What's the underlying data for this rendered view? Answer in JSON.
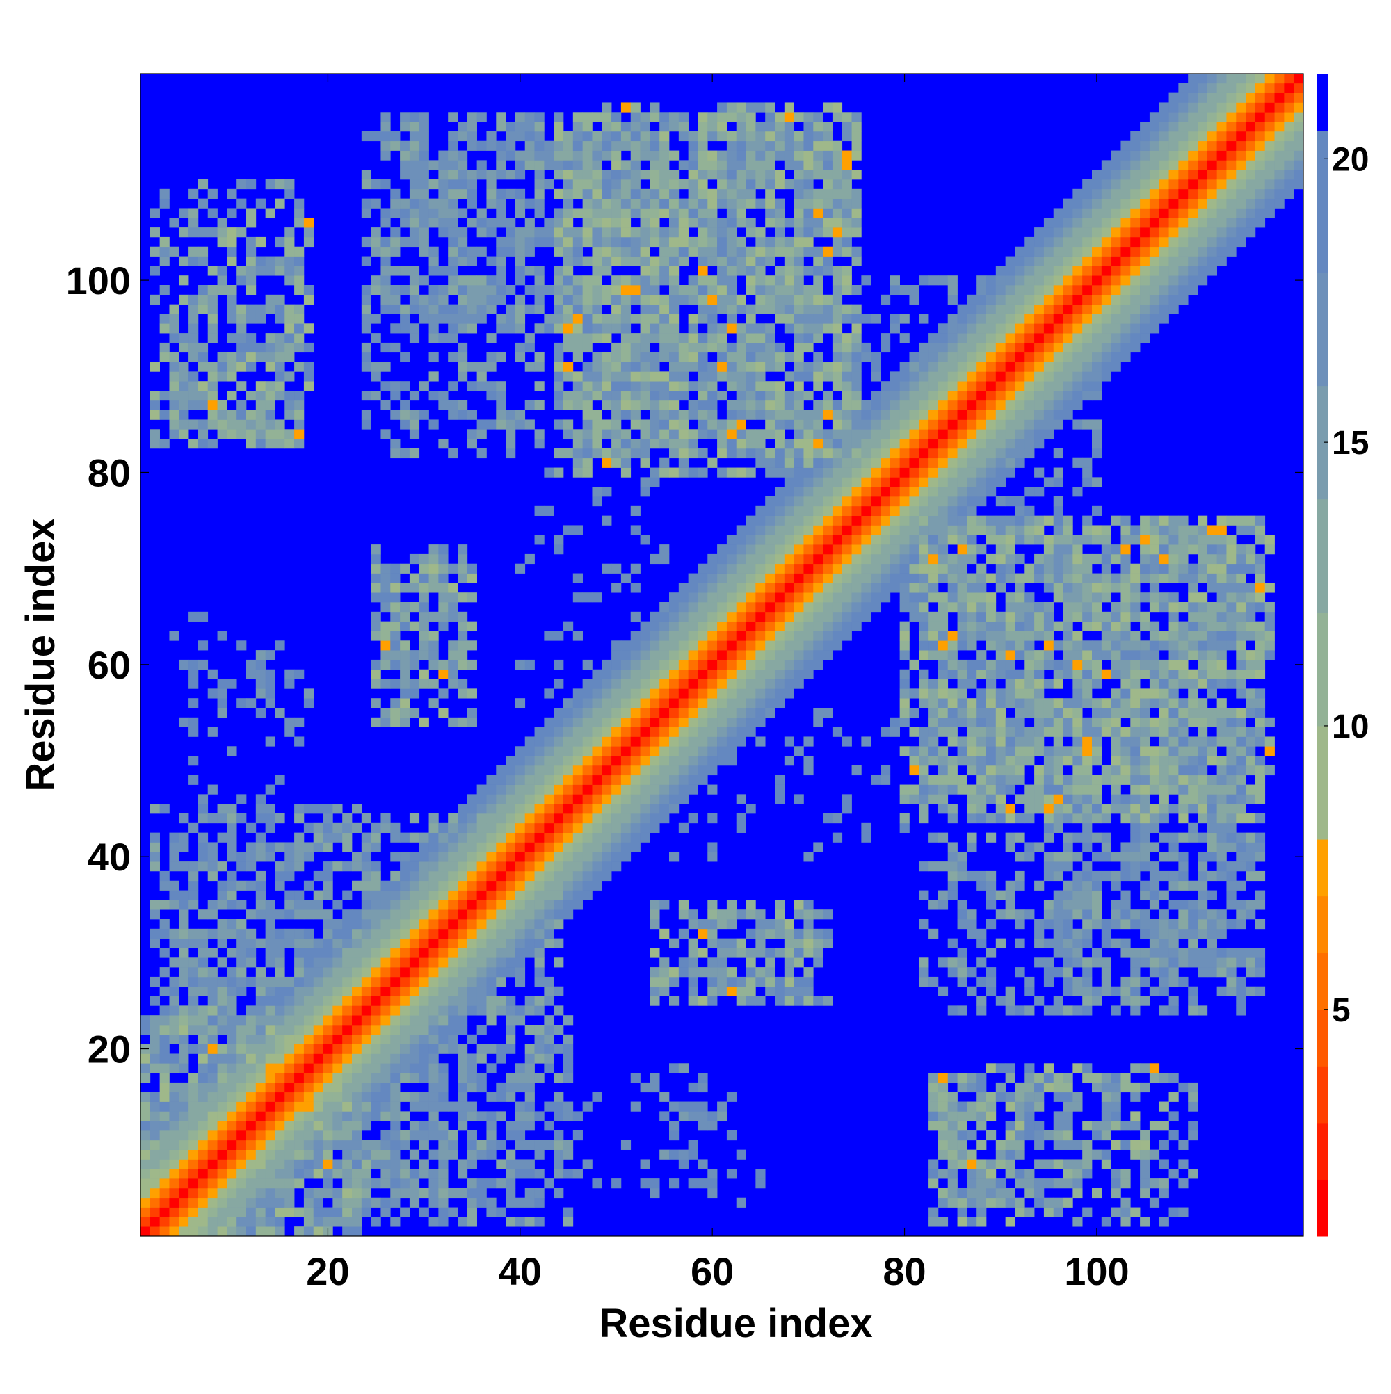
{
  "chart_data": {
    "type": "heatmap",
    "title": "",
    "xlabel": "Residue index",
    "ylabel": "Residue index",
    "n_residues": 121,
    "xlim": [
      1,
      121
    ],
    "ylim": [
      1,
      121
    ],
    "x_ticks": [
      20,
      40,
      60,
      80,
      100
    ],
    "y_ticks": [
      20,
      40,
      60,
      80,
      100
    ],
    "grid": false,
    "legend": "none",
    "colorbar": {
      "position": "right",
      "ticks": [
        5,
        10,
        15,
        20
      ],
      "range": [
        1,
        21.5
      ],
      "levels": [
        {
          "from": 1,
          "to": 2,
          "color": "#ff0000"
        },
        {
          "from": 2,
          "to": 3,
          "color": "#ff2000"
        },
        {
          "from": 3,
          "to": 4,
          "color": "#ff4000"
        },
        {
          "from": 4,
          "to": 5,
          "color": "#ff5a00"
        },
        {
          "from": 5,
          "to": 6,
          "color": "#ff7000"
        },
        {
          "from": 6,
          "to": 7,
          "color": "#ff8800"
        },
        {
          "from": 7,
          "to": 8,
          "color": "#ffa000"
        },
        {
          "from": 8,
          "to": 10,
          "color": "#9fb88a"
        },
        {
          "from": 10,
          "to": 12,
          "color": "#93b296"
        },
        {
          "from": 12,
          "to": 14,
          "color": "#87a8a2"
        },
        {
          "from": 14,
          "to": 16,
          "color": "#7a9cae"
        },
        {
          "from": 16,
          "to": 18,
          "color": "#6d90ba"
        },
        {
          "from": 18,
          "to": 20.5,
          "color": "#6488c0"
        },
        {
          "from": 20.5,
          "to": 21.5,
          "color": "#0000ff"
        }
      ]
    },
    "description_of_values": "Symmetric residue-residue distance map (units as colorbar, 1-21.5); cells beyond the cutoff are blue.",
    "distance_model": {
      "diagonal_band": "distance increases with |i-j|: |i-j|=0 -> 1.5, 1 -> 3, 2 -> 5, 3 -> 7, 4 -> 9, then ~+1.6 per residue up to 20",
      "contact_regions": [
        {
          "i_range": [
            1,
            24
          ],
          "j_range": [
            1,
            24
          ],
          "min": 7,
          "max": 19,
          "density": 0.75
        },
        {
          "i_range": [
            44,
            75
          ],
          "j_range": [
            82,
            117
          ],
          "min": 7,
          "max": 19,
          "density": 0.6
        },
        {
          "i_range": [
            26,
            45
          ],
          "j_range": [
            95,
            117
          ],
          "min": 12,
          "max": 19,
          "density": 0.45
        },
        {
          "i_range": [
            4,
            17
          ],
          "j_range": [
            84,
            97
          ],
          "min": 7,
          "max": 19,
          "density": 0.55
        },
        {
          "i_range": [
            25,
            34
          ],
          "j_range": [
            58,
            72
          ],
          "min": 7,
          "max": 19,
          "density": 0.5
        },
        {
          "i_range": [
            5,
            18
          ],
          "j_range": [
            54,
            62
          ],
          "min": 15,
          "max": 19,
          "density": 0.25
        },
        {
          "i_range": [
            4,
            40
          ],
          "j_range": [
            20,
            44
          ],
          "min": 12,
          "max": 19,
          "density": 0.35
        },
        {
          "i_range": [
            18,
            45
          ],
          "j_range": [
            2,
            25
          ],
          "min": 12,
          "max": 19,
          "density": 0.45
        },
        {
          "i_range": [
            40,
            65
          ],
          "j_range": [
            4,
            18
          ],
          "min": 16,
          "max": 19,
          "density": 0.1
        },
        {
          "i_range": [
            54,
            70
          ],
          "j_range": [
            25,
            35
          ],
          "min": 7,
          "max": 19,
          "density": 0.5
        },
        {
          "i_range": [
            56,
            80
          ],
          "j_range": [
            40,
            55
          ],
          "min": 16,
          "max": 19,
          "density": 0.15
        },
        {
          "i_range": [
            83,
            110
          ],
          "j_range": [
            2,
            18
          ],
          "min": 7,
          "max": 19,
          "density": 0.5
        },
        {
          "i_range": [
            82,
            117
          ],
          "j_range": [
            24,
            42
          ],
          "min": 12,
          "max": 19,
          "density": 0.45
        },
        {
          "i_range": [
            80,
            118
          ],
          "j_range": [
            44,
            75
          ],
          "min": 7,
          "max": 19,
          "density": 0.6
        },
        {
          "i_range": [
            74,
            95
          ],
          "j_range": [
            84,
            100
          ],
          "min": 15,
          "max": 19,
          "density": 0.3
        }
      ]
    }
  }
}
